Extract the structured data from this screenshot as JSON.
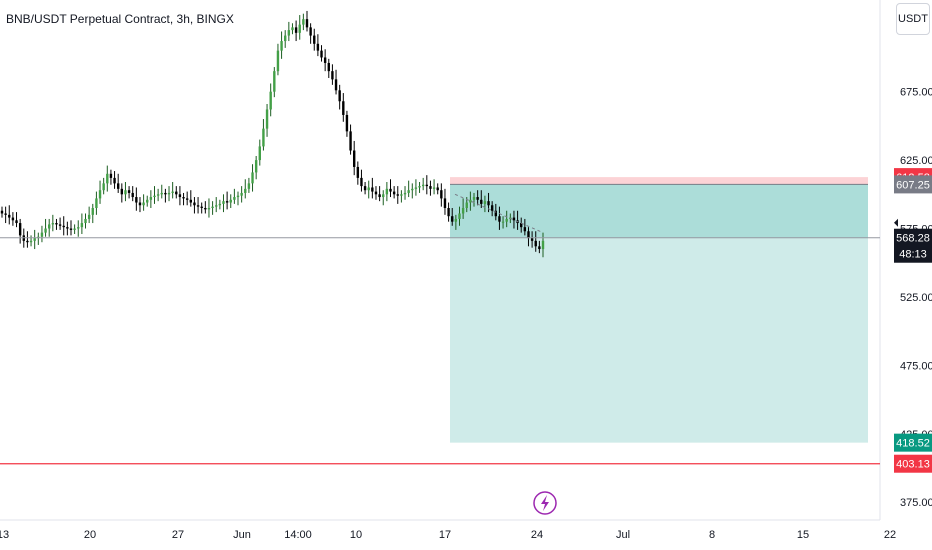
{
  "header": {
    "title": "BNB/USDT Perpetual Contract, 3h, BINGX"
  },
  "toolbar": {
    "currency_label": "USDT"
  },
  "chart_data": {
    "type": "candlestick",
    "y_ticks": [
      "675.00",
      "625.00",
      "575.00",
      "525.00",
      "475.00",
      "425.00",
      "375.00"
    ],
    "y_tick_values": [
      675,
      625,
      575,
      525,
      475,
      425,
      375
    ],
    "x_ticks": [
      "13",
      "20",
      "27",
      "Jun",
      "14:00",
      "10",
      "17",
      "24",
      "Jul",
      "8",
      "15",
      "22"
    ],
    "ylim": [
      362,
      742
    ],
    "series_close": [
      586,
      585,
      583,
      581,
      579,
      570,
      566,
      565,
      566,
      568,
      569,
      572,
      575,
      578,
      579,
      578,
      577,
      576,
      575,
      574,
      575,
      576,
      579,
      582,
      585,
      590,
      597,
      603,
      608,
      615,
      612,
      608,
      604,
      600,
      603,
      601,
      598,
      594,
      592,
      594,
      596,
      598,
      599,
      600,
      601,
      600,
      601,
      602,
      600,
      598,
      597,
      596,
      594,
      592,
      591,
      590,
      589,
      590,
      591,
      592,
      593,
      595,
      594,
      596,
      598,
      599,
      601,
      604,
      608,
      616,
      625,
      635,
      648,
      662,
      675,
      690,
      705,
      712,
      716,
      720,
      722,
      718,
      724,
      728,
      722,
      716,
      710,
      705,
      700,
      696,
      690,
      684,
      676,
      668,
      658,
      646,
      632,
      620,
      612,
      606,
      603,
      605,
      602,
      600,
      598,
      600,
      604,
      602,
      600,
      599,
      600,
      601,
      603,
      604,
      605,
      606,
      607,
      606,
      604,
      605,
      603,
      597,
      590,
      584,
      580,
      582,
      586,
      590,
      594,
      596,
      598,
      596,
      593,
      595,
      592,
      588,
      584,
      580,
      580,
      582,
      583,
      581,
      579,
      576,
      573,
      568,
      566,
      562,
      560,
      566
    ],
    "position": {
      "stop": "612.58",
      "entry": "607.25",
      "target": "418.52"
    },
    "price_lines": [
      {
        "label": "568.28",
        "countdown": "48:13",
        "value": 568.28
      },
      {
        "label": "403.13",
        "value": 403.13
      }
    ],
    "colors": {
      "up": "#26a69a",
      "down": "#000000",
      "reward": "#26a69a",
      "risk": "#f23645",
      "entry": "#787b86"
    }
  }
}
